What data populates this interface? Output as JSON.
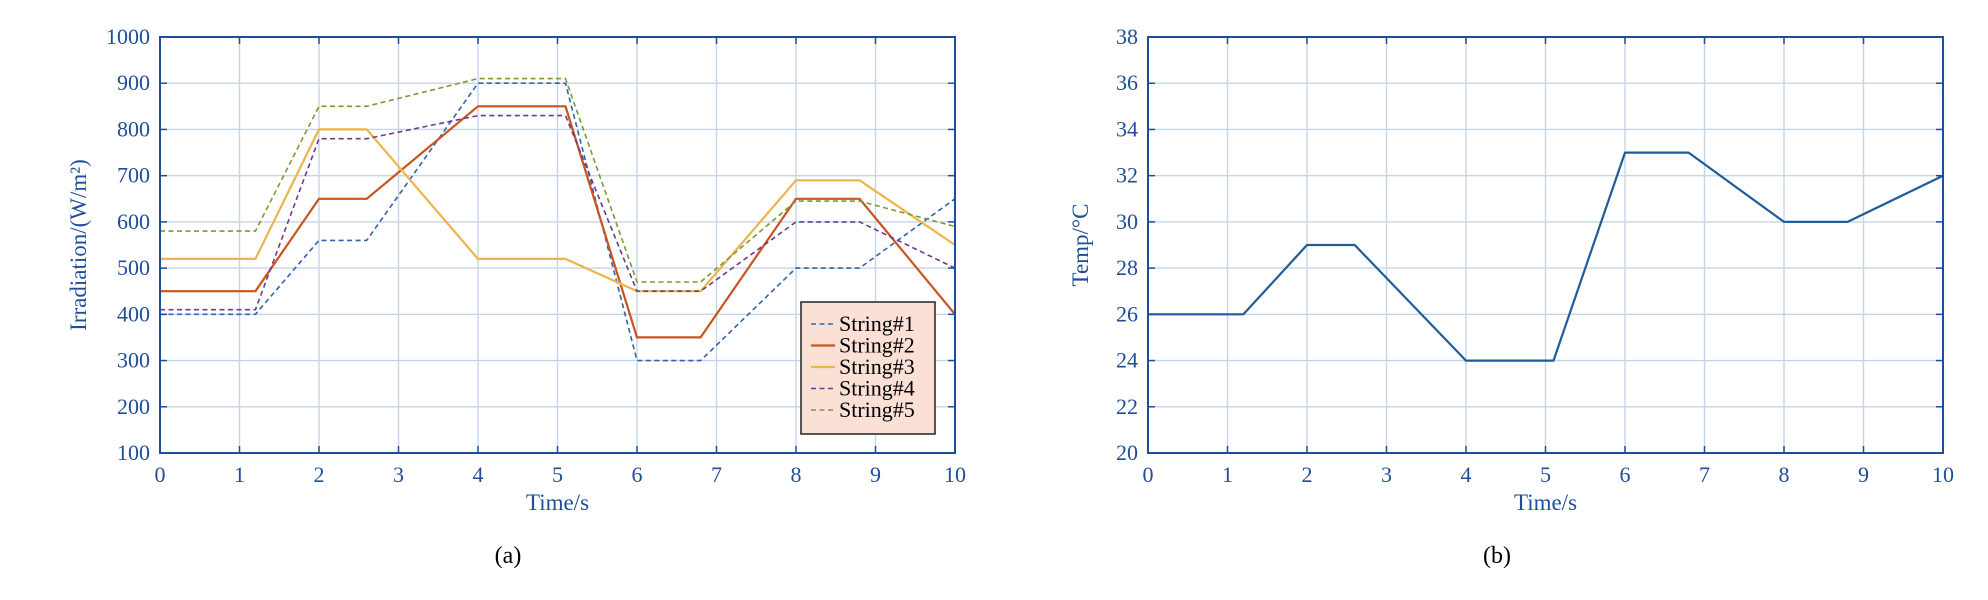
{
  "chart_data": [
    {
      "type": "line",
      "caption": "(a)",
      "xlabel": "Time/s",
      "ylabel": "Irradiation/(W/m²)",
      "xlim": [
        0,
        10
      ],
      "ylim": [
        100,
        1000
      ],
      "xticks": [
        "0",
        "1",
        "2",
        "3",
        "4",
        "5",
        "6",
        "7",
        "8",
        "9",
        "10"
      ],
      "yticks": [
        "100",
        "200",
        "300",
        "400",
        "500",
        "600",
        "700",
        "800",
        "900",
        "1000"
      ],
      "grid": true,
      "legend_position": "bottom-right",
      "series": [
        {
          "name": "String#1",
          "color": "#2e64a8",
          "dash": "dashed",
          "x": [
            0,
            1.2,
            2,
            2.6,
            4,
            5.1,
            6,
            6.8,
            8,
            8.8,
            10
          ],
          "y": [
            400,
            400,
            560,
            560,
            900,
            900,
            300,
            300,
            500,
            500,
            650
          ]
        },
        {
          "name": "String#2",
          "color": "#c8541f",
          "dash": "solid",
          "x": [
            0,
            1.2,
            2,
            2.6,
            4,
            5.1,
            6,
            6.8,
            8,
            8.8,
            10
          ],
          "y": [
            450,
            450,
            650,
            650,
            850,
            850,
            350,
            350,
            650,
            650,
            400
          ]
        },
        {
          "name": "String#3",
          "color": "#edb44a",
          "dash": "solid",
          "x": [
            0,
            1.2,
            2,
            2.6,
            4,
            5.1,
            6,
            6.8,
            8,
            8.8,
            10
          ],
          "y": [
            520,
            520,
            800,
            800,
            520,
            520,
            450,
            450,
            690,
            690,
            550
          ]
        },
        {
          "name": "String#4",
          "color": "#6f3a8c",
          "dash": "dashed",
          "x": [
            0,
            1.2,
            2,
            2.6,
            4,
            5.1,
            6,
            6.8,
            8,
            8.8,
            10
          ],
          "y": [
            410,
            410,
            780,
            780,
            830,
            830,
            450,
            450,
            600,
            600,
            500
          ]
        },
        {
          "name": "String#5",
          "color": "#7a9a2f",
          "dash": "dashed",
          "x": [
            0,
            1.2,
            2,
            2.6,
            4,
            5.1,
            6,
            6.8,
            8,
            8.8,
            10
          ],
          "y": [
            580,
            580,
            850,
            850,
            910,
            910,
            470,
            470,
            645,
            645,
            590
          ]
        }
      ]
    },
    {
      "type": "line",
      "caption": "(b)",
      "xlabel": "Time/s",
      "ylabel": "Temp/°C",
      "xlim": [
        0,
        10
      ],
      "ylim": [
        20,
        38
      ],
      "xticks": [
        "0",
        "1",
        "2",
        "3",
        "4",
        "5",
        "6",
        "7",
        "8",
        "9",
        "10"
      ],
      "yticks": [
        "20",
        "22",
        "24",
        "26",
        "28",
        "30",
        "32",
        "34",
        "36",
        "38"
      ],
      "grid": true,
      "series": [
        {
          "color": "#1f5c99",
          "dash": "solid",
          "x": [
            0,
            1.2,
            2,
            2.6,
            4,
            5.1,
            6,
            6.8,
            8,
            8.8,
            10
          ],
          "y": [
            26,
            26,
            29,
            29,
            24,
            24,
            33,
            33,
            30,
            30,
            32
          ]
        }
      ]
    }
  ]
}
